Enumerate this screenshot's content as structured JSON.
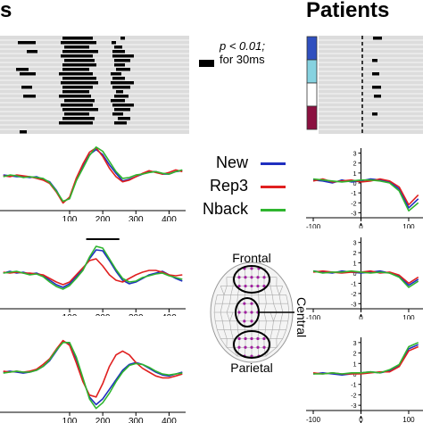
{
  "titles": {
    "left": "s",
    "right": "Patients"
  },
  "significance_legend": {
    "line1": "p < 0.01;",
    "line2": "for 30ms"
  },
  "legend": [
    {
      "label": "New",
      "color": "#1f2fbf"
    },
    {
      "label": "Rep3",
      "color": "#e02020"
    },
    {
      "label": "Nback",
      "color": "#2fb52f"
    }
  ],
  "head_map": {
    "frontal": "Frontal",
    "central": "Central",
    "parietal": "Parietal"
  },
  "sig_marker": "*",
  "colors": {
    "raster_bg": "#dcdcdc",
    "raster_line": "#ffffff",
    "mark": "#000000",
    "row_blue": "#2f4fbf",
    "row_cyan": "#86d2e0",
    "row_white": "#ffffff",
    "row_maroon": "#8b1040"
  },
  "chart_data": [
    {
      "type": "line",
      "panel": "left-top",
      "x": [
        -100,
        -80,
        -60,
        -40,
        -20,
        0,
        20,
        40,
        60,
        80,
        100,
        120,
        140,
        160,
        180,
        200,
        220,
        240,
        260,
        280,
        300,
        320,
        340,
        360,
        380,
        400,
        420,
        440
      ],
      "x_ticks": [
        100,
        200,
        300,
        400
      ],
      "series": [
        {
          "name": "New",
          "values": [
            0.2,
            0.1,
            0,
            0,
            -0.1,
            0,
            -0.3,
            -0.6,
            -1.6,
            -3.0,
            -2.5,
            -0.4,
            1.2,
            2.6,
            3.2,
            2.6,
            1.4,
            0.4,
            -0.5,
            -0.3,
            0,
            0.3,
            0.6,
            0.6,
            0.3,
            0.3,
            0.6,
            0.7
          ]
        },
        {
          "name": "Rep3",
          "values": [
            0.1,
            0,
            0.2,
            0.1,
            0,
            -0.2,
            -0.4,
            -0.8,
            -1.8,
            -3.1,
            -2.4,
            -0.2,
            1.5,
            2.9,
            3.4,
            2.4,
            1.0,
            0,
            -0.6,
            -0.4,
            0,
            0.4,
            0.7,
            0.5,
            0.3,
            0.5,
            0.8,
            0.6
          ]
        },
        {
          "name": "Nback",
          "values": [
            0,
            0.2,
            0.1,
            -0.1,
            0,
            -0.1,
            -0.2,
            -0.7,
            -1.7,
            -2.9,
            -2.6,
            -0.5,
            1.0,
            2.5,
            3.5,
            3.0,
            1.8,
            0.6,
            -0.2,
            -0.1,
            0.2,
            0.3,
            0.5,
            0.6,
            0.4,
            0.3,
            0.6,
            0.8
          ]
        }
      ]
    },
    {
      "type": "line",
      "panel": "left-middle",
      "x": [
        -100,
        -80,
        -60,
        -40,
        -20,
        0,
        20,
        40,
        60,
        80,
        100,
        120,
        140,
        160,
        180,
        200,
        220,
        240,
        260,
        280,
        300,
        320,
        340,
        360,
        380,
        400,
        420,
        440
      ],
      "x_ticks": [
        100,
        200,
        300,
        400
      ],
      "significance_window": [
        150,
        250
      ],
      "series": [
        {
          "name": "New",
          "values": [
            0,
            0.2,
            0,
            0.1,
            -0.1,
            0,
            -0.3,
            -0.8,
            -1.3,
            -1.6,
            -1.2,
            -0.4,
            0.4,
            1.6,
            2.6,
            2.5,
            1.4,
            0.2,
            -0.8,
            -1.2,
            -1.0,
            -0.6,
            -0.2,
            0,
            0.2,
            -0.2,
            -0.6,
            -0.9
          ]
        },
        {
          "name": "Rep3",
          "values": [
            0.1,
            0,
            0.1,
            0,
            0,
            -0.1,
            -0.2,
            -0.6,
            -1.0,
            -1.3,
            -1.0,
            -0.2,
            0.6,
            1.4,
            1.6,
            0.8,
            -0.2,
            -0.8,
            -1.0,
            -0.6,
            -0.2,
            0.1,
            0.3,
            0.3,
            0.1,
            -0.2,
            -0.3,
            -0.2
          ]
        },
        {
          "name": "Nback",
          "values": [
            0,
            0.1,
            0.2,
            0,
            -0.2,
            -0.1,
            -0.4,
            -1.0,
            -1.5,
            -1.8,
            -1.4,
            -0.6,
            0.3,
            1.8,
            3.0,
            2.8,
            1.6,
            0.4,
            -0.6,
            -1.0,
            -0.9,
            -0.5,
            -0.3,
            -0.1,
            0,
            -0.3,
            -0.5,
            -0.7
          ]
        }
      ]
    },
    {
      "type": "line",
      "panel": "left-bottom",
      "x": [
        -100,
        -80,
        -60,
        -40,
        -20,
        0,
        20,
        40,
        60,
        80,
        100,
        120,
        140,
        160,
        180,
        200,
        220,
        240,
        260,
        280,
        300,
        320,
        340,
        360,
        380,
        400,
        420,
        440
      ],
      "x_ticks": [
        100,
        200,
        300,
        400
      ],
      "series": [
        {
          "name": "New",
          "values": [
            0,
            0.1,
            0,
            -0.1,
            0,
            0.2,
            0.6,
            1.2,
            2.2,
            3.2,
            3.0,
            1.4,
            -0.8,
            -2.6,
            -3.4,
            -2.8,
            -1.8,
            -0.8,
            0.2,
            0.8,
            1.0,
            0.8,
            0.4,
            0,
            -0.3,
            -0.4,
            -0.2,
            0
          ]
        },
        {
          "name": "Rep3",
          "values": [
            0.1,
            0,
            0.1,
            0,
            0.1,
            0.3,
            0.8,
            1.4,
            2.4,
            3.3,
            2.8,
            1.0,
            -1.0,
            -2.4,
            -2.6,
            -1.2,
            0.6,
            1.8,
            2.2,
            1.8,
            1.0,
            0.4,
            0,
            -0.4,
            -0.6,
            -0.6,
            -0.4,
            -0.2
          ]
        },
        {
          "name": "Nback",
          "values": [
            -0.1,
            0,
            0.1,
            0,
            0,
            0.2,
            0.6,
            1.3,
            2.3,
            3.1,
            3.1,
            1.6,
            -0.6,
            -2.8,
            -3.8,
            -3.2,
            -2.2,
            -1.0,
            0,
            0.7,
            0.9,
            0.8,
            0.5,
            0.1,
            -0.2,
            -0.3,
            -0.2,
            -0.1
          ]
        }
      ]
    },
    {
      "type": "line",
      "panel": "right-top",
      "x": [
        -100,
        -80,
        -60,
        -40,
        -20,
        0,
        20,
        40,
        60,
        80,
        100,
        120
      ],
      "x_ticks": [
        -100,
        0,
        100
      ],
      "y_ticks": [
        3,
        2,
        1,
        0,
        -1,
        -2,
        -3
      ],
      "ylim": [
        -3.5,
        3.5
      ],
      "series": [
        {
          "name": "New",
          "values": [
            0.3,
            0.2,
            0,
            0.3,
            0.1,
            0.2,
            0.4,
            0.3,
            0.1,
            -0.6,
            -2.5,
            -1.6
          ]
        },
        {
          "name": "Rep3",
          "values": [
            0.2,
            0.4,
            0.1,
            0.2,
            0.3,
            0.1,
            0.2,
            0.4,
            0.2,
            -0.4,
            -2.2,
            -1.2
          ]
        },
        {
          "name": "Nback",
          "values": [
            0.4,
            0.3,
            0.2,
            0.1,
            0.2,
            0.3,
            0.3,
            0.2,
            0,
            -0.8,
            -2.8,
            -2.0
          ]
        }
      ]
    },
    {
      "type": "line",
      "panel": "right-middle",
      "x": [
        -100,
        -80,
        -60,
        -40,
        -20,
        0,
        20,
        40,
        60,
        80,
        100,
        120
      ],
      "x_ticks": [
        -100,
        0,
        100
      ],
      "y_ticks": [
        3,
        2,
        1,
        0,
        -1,
        -2,
        -3
      ],
      "ylim": [
        -3.5,
        3.5
      ],
      "series": [
        {
          "name": "New",
          "values": [
            0.2,
            0.1,
            0,
            0.2,
            0.1,
            0,
            0.1,
            0.2,
            0,
            -0.3,
            -1.2,
            -0.6
          ]
        },
        {
          "name": "Rep3",
          "values": [
            0.1,
            0.2,
            0.1,
            0,
            0.1,
            0.1,
            0.2,
            0,
            0.1,
            -0.2,
            -1.0,
            -0.4
          ]
        },
        {
          "name": "Nback",
          "values": [
            0.2,
            0,
            0.1,
            0.1,
            0.2,
            0.1,
            0,
            0.1,
            0,
            -0.4,
            -1.4,
            -0.8
          ]
        }
      ]
    },
    {
      "type": "line",
      "panel": "right-bottom",
      "x": [
        -100,
        -80,
        -60,
        -40,
        -20,
        0,
        20,
        40,
        60,
        80,
        100,
        120
      ],
      "x_ticks": [
        -100,
        0,
        100
      ],
      "y_ticks": [
        3,
        2,
        1,
        0,
        -1,
        -2,
        -3
      ],
      "ylim": [
        -3.5,
        3.5
      ],
      "series": [
        {
          "name": "New",
          "values": [
            0,
            0.1,
            0,
            -0.1,
            0,
            0.1,
            0.2,
            0.1,
            0.3,
            0.8,
            2.4,
            2.8
          ]
        },
        {
          "name": "Rep3",
          "values": [
            0.1,
            0,
            0.1,
            0,
            0,
            0,
            0.1,
            0.2,
            0.2,
            0.7,
            2.2,
            2.6
          ]
        },
        {
          "name": "Nback",
          "values": [
            0,
            0,
            0.1,
            0,
            0.1,
            0.1,
            0.2,
            0.1,
            0.4,
            0.9,
            2.6,
            3.0
          ]
        }
      ]
    }
  ]
}
